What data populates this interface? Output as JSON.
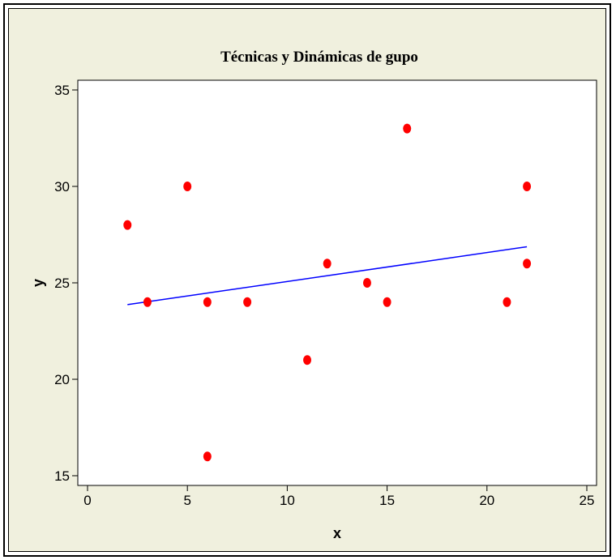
{
  "chart_data": {
    "type": "scatter",
    "title": "Técnicas y Dinámicas de gupo",
    "xlabel": "x",
    "ylabel": "y",
    "xlim": [
      0,
      25
    ],
    "ylim": [
      15,
      35
    ],
    "xticks": [
      0,
      5,
      10,
      15,
      20,
      25
    ],
    "yticks": [
      15,
      20,
      25,
      30,
      35
    ],
    "grid": false,
    "legend": "none",
    "series": [
      {
        "points": [
          {
            "x": 2,
            "y": 28
          },
          {
            "x": 3,
            "y": 24
          },
          {
            "x": 5,
            "y": 30
          },
          {
            "x": 6,
            "y": 24
          },
          {
            "x": 6,
            "y": 16
          },
          {
            "x": 8,
            "y": 24
          },
          {
            "x": 11,
            "y": 21
          },
          {
            "x": 12,
            "y": 26
          },
          {
            "x": 14,
            "y": 25
          },
          {
            "x": 15,
            "y": 24
          },
          {
            "x": 16,
            "y": 33
          },
          {
            "x": 21,
            "y": 24
          },
          {
            "x": 22,
            "y": 30
          },
          {
            "x": 22,
            "y": 26
          }
        ],
        "color": "#ff0000"
      }
    ],
    "trendline": {
      "x": [
        2,
        22
      ],
      "y": [
        23.87,
        26.87
      ],
      "color": "#0000ff"
    },
    "colors": {
      "background": "#f0f0de",
      "plot_background": "#ffffff",
      "frame": "#000000"
    }
  }
}
